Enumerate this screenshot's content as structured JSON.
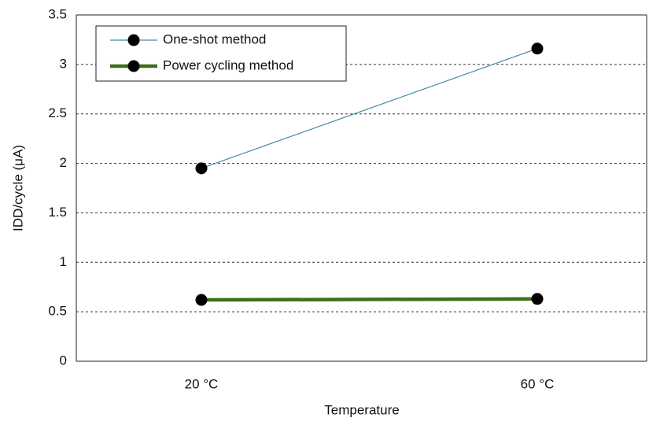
{
  "chart_data": {
    "type": "line",
    "x_label": "Temperature",
    "y_label": "IDD/cycle (μA)",
    "categories": [
      "20 °C",
      "60 °C"
    ],
    "series": [
      {
        "name": "One-shot method",
        "color": "#3b8ea5",
        "values": [
          1.95,
          3.16
        ]
      },
      {
        "name": "Power cycling method",
        "color": "#3f6e1c",
        "values": [
          0.62,
          0.63
        ]
      }
    ],
    "ylim": [
      0,
      3.5
    ],
    "yticks": [
      0,
      0.5,
      1,
      1.5,
      2,
      2.5,
      3,
      3.5
    ],
    "grid": true,
    "legend": "upper left"
  }
}
